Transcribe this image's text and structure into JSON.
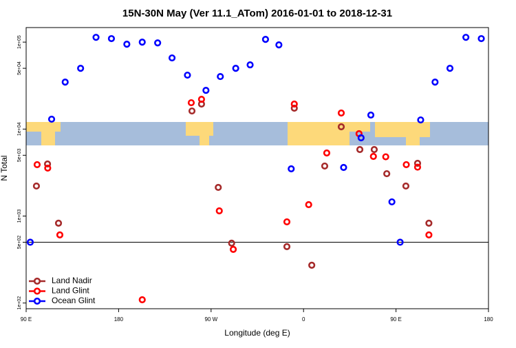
{
  "chart_data": {
    "type": "scatter",
    "title": "15N-30N May (Ver 11.1_ATom)   2016-01-01 to 2018-12-31",
    "x_label": "Longitude (deg E)",
    "y_label": "N Total",
    "log_y": true,
    "legend": "bottom-left",
    "xlim": [
      90,
      540
    ],
    "xticks": [
      {
        "value": 90,
        "label": "90 E"
      },
      180,
      {
        "value": 270,
        "label": "90 W"
      },
      {
        "value": 360,
        "label": "0"
      },
      {
        "value": 450,
        "label": "90 E"
      },
      {
        "value": 540,
        "label": "180"
      }
    ],
    "ylim": [
      86,
      147000
    ],
    "yticks": [
      {
        "value": 100,
        "label": "1e+02"
      },
      {
        "value": 500,
        "label": "5e+02"
      },
      {
        "value": 1000,
        "label": "1e+03"
      },
      {
        "value": 5000,
        "label": "5e+03"
      },
      {
        "value": 10000,
        "label": "1e+04"
      },
      {
        "value": 50000,
        "label": "5e+04"
      },
      {
        "value": 100000,
        "label": "1e+05"
      }
    ],
    "hline": 500,
    "series": [
      {
        "name": "Land Nadir",
        "color": "#a52a2a",
        "x": [
          100,
          110.8,
          121.5,
          251.4,
          260.7,
          277,
          290,
          343.8,
          351,
          368,
          380.6,
          396.7,
          414.8,
          428.8,
          441,
          459.6,
          471,
          482
        ],
        "values": [
          2215,
          3970,
          828,
          16150,
          19400,
          2135,
          488,
          445,
          17400,
          272,
          3760,
          10620,
          5820,
          5820,
          3070,
          2215,
          4040,
          828
        ]
      },
      {
        "name": "Land Glint",
        "color": "#ff0000",
        "x": [
          100.7,
          111,
          122.8,
          203,
          250.7,
          260.7,
          278,
          291.6,
          343.8,
          351,
          365,
          382.6,
          396.7,
          414,
          428,
          440,
          460,
          471,
          482
        ],
        "values": [
          3900,
          3560,
          607,
          109,
          20100,
          22000,
          1148,
          414,
          858,
          19400,
          1353,
          5310,
          15300,
          8850,
          4850,
          4800,
          3900,
          3650,
          607
        ]
      },
      {
        "name": "Ocean Glint",
        "color": "#0000ff",
        "x": [
          94,
          114.8,
          128,
          143,
          158,
          173,
          188,
          203,
          218,
          232,
          247,
          265,
          279,
          294,
          308,
          323,
          336,
          348,
          399,
          416,
          425.5,
          446,
          454,
          474,
          488,
          502.5,
          518,
          533
        ],
        "values": [
          500,
          13000,
          34700,
          50000,
          113500,
          109700,
          94700,
          100000,
          98000,
          65800,
          41700,
          27900,
          40200,
          50000,
          54800,
          107600,
          92900,
          3490,
          3620,
          7930,
          14500,
          1456,
          500,
          12740,
          34700,
          50000,
          113500,
          109700
        ]
      }
    ]
  }
}
